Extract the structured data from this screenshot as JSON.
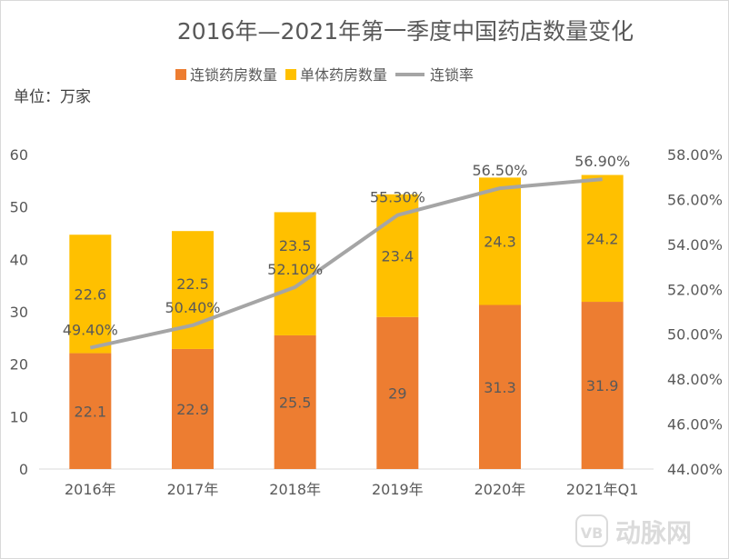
{
  "chart_data": {
    "type": "bar",
    "title": "2016年—2021年第一季度中国药店数量变化",
    "unit_label": "单位：万家",
    "categories": [
      "2016年",
      "2017年",
      "2018年",
      "2019年",
      "2020年",
      "2021年Q1"
    ],
    "series": [
      {
        "name": "连锁药房数量",
        "kind": "bar",
        "axis": "left",
        "color": "#ED7D31",
        "values": [
          22.1,
          22.9,
          25.5,
          29,
          31.3,
          31.9
        ]
      },
      {
        "name": "单体药房数量",
        "kind": "bar",
        "axis": "left",
        "color": "#FFC000",
        "values": [
          22.6,
          22.5,
          23.5,
          23.4,
          24.3,
          24.2
        ]
      },
      {
        "name": "连锁率",
        "kind": "line",
        "axis": "right",
        "color": "#A5A5A5",
        "values": [
          49.4,
          50.4,
          52.1,
          55.3,
          56.5,
          56.9
        ],
        "labels": [
          "49.40%",
          "50.40%",
          "52.10%",
          "55.30%",
          "56.50%",
          "56.90%"
        ]
      }
    ],
    "stacked": true,
    "ylim": [
      0,
      60
    ],
    "yticks": [
      "0",
      "10",
      "20",
      "30",
      "40",
      "50",
      "60"
    ],
    "y2lim": [
      44,
      58
    ],
    "y2ticks": [
      "44.00%",
      "46.00%",
      "48.00%",
      "50.00%",
      "52.00%",
      "54.00%",
      "56.00%",
      "58.00%"
    ],
    "legend_position": "top",
    "grid": false
  },
  "watermark": {
    "logo": "VB",
    "text": "动脉网"
  }
}
